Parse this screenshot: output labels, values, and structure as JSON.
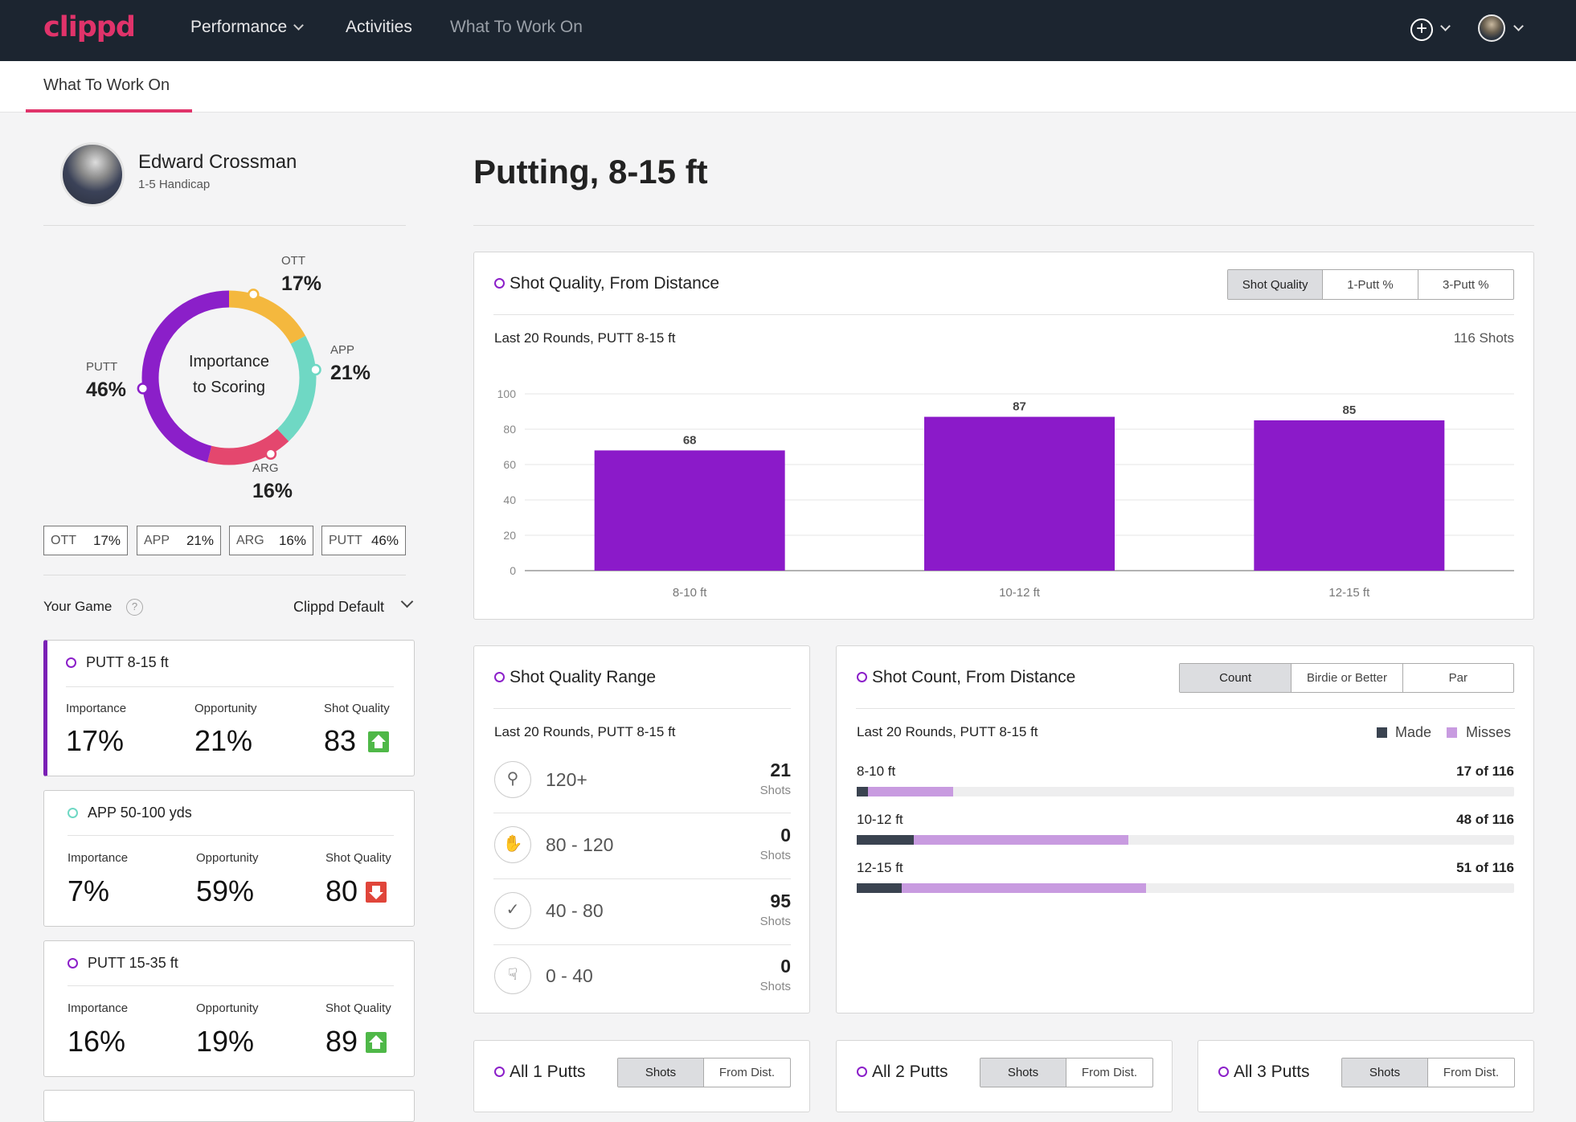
{
  "nav": {
    "logo": "clippd",
    "items": [
      {
        "label": "Performance"
      },
      {
        "label": "Activities"
      },
      {
        "label": "What To Work On"
      }
    ]
  },
  "subnav": {
    "tab": "What To Work On"
  },
  "profile": {
    "name": "Edward Crossman",
    "handicap": "1-5 Handicap"
  },
  "importance": {
    "center_line1": "Importance",
    "center_line2": "to Scoring",
    "segments": [
      {
        "key": "OTT",
        "value": 17,
        "label": "17%",
        "color": "#f4b83e"
      },
      {
        "key": "APP",
        "value": 21,
        "label": "21%",
        "color": "#6fd8c4"
      },
      {
        "key": "ARG",
        "value": 16,
        "label": "16%",
        "color": "#e4476e"
      },
      {
        "key": "PUTT",
        "value": 46,
        "label": "46%",
        "color": "#8b1fc9"
      }
    ]
  },
  "your_game": {
    "label": "Your Game",
    "help": "?",
    "selector": "Clippd Default"
  },
  "cards": [
    {
      "title": "PUTT 8-15 ft",
      "importance_label": "Importance",
      "importance": "17%",
      "opportunity_label": "Opportunity",
      "opportunity": "21%",
      "quality_label": "Shot Quality",
      "quality": "83",
      "trend": "up"
    },
    {
      "title": "APP 50-100 yds",
      "importance_label": "Importance",
      "importance": "7%",
      "opportunity_label": "Opportunity",
      "opportunity": "59%",
      "quality_label": "Shot Quality",
      "quality": "80",
      "trend": "down"
    },
    {
      "title": "PUTT 15-35 ft",
      "importance_label": "Importance",
      "importance": "16%",
      "opportunity_label": "Opportunity",
      "opportunity": "19%",
      "quality_label": "Shot Quality",
      "quality": "89",
      "trend": "up"
    }
  ],
  "main": {
    "title": "Putting, 8-15 ft"
  },
  "shot_quality_panel": {
    "title": "Shot Quality, From Distance",
    "tabs": [
      "Shot Quality",
      "1-Putt %",
      "3-Putt %"
    ],
    "subtitle": "Last 20 Rounds, PUTT 8-15 ft",
    "shots": "116 Shots"
  },
  "chart_data": {
    "type": "bar",
    "title": "Shot Quality, From Distance",
    "categories": [
      "8-10 ft",
      "10-12 ft",
      "12-15 ft"
    ],
    "values": [
      68,
      87,
      85
    ],
    "ylim": [
      0,
      100
    ],
    "yticks": [
      0,
      20,
      40,
      60,
      80,
      100
    ],
    "grid": true,
    "bar_color": "#8b1ac9"
  },
  "range_panel": {
    "title": "Shot Quality Range",
    "subtitle": "Last 20 Rounds, PUTT 8-15 ft",
    "unit": "Shots",
    "rows": [
      {
        "label": "120+",
        "value": "21",
        "icon": "medal-icon"
      },
      {
        "label": "80 - 120",
        "value": "0",
        "icon": "clap-icon"
      },
      {
        "label": "40 - 80",
        "value": "95",
        "icon": "check-icon"
      },
      {
        "label": "0 - 40",
        "value": "0",
        "icon": "thumbs-down-icon"
      }
    ]
  },
  "count_panel": {
    "title": "Shot Count, From Distance",
    "tabs": [
      "Count",
      "Birdie or Better",
      "Par"
    ],
    "subtitle": "Last 20 Rounds, PUTT 8-15 ft",
    "legend_made": "Made",
    "legend_misses": "Misses",
    "made_color": "#3a4350",
    "miss_color": "#c89be0",
    "rows": [
      {
        "label": "8-10 ft",
        "text": "17 of 116",
        "count": 17,
        "total": 116,
        "made": 2
      },
      {
        "label": "10-12 ft",
        "text": "48 of 116",
        "count": 48,
        "total": 116,
        "made": 10
      },
      {
        "label": "12-15 ft",
        "text": "51 of 116",
        "count": 51,
        "total": 116,
        "made": 8
      }
    ]
  },
  "putts_panels": [
    {
      "title": "All 1 Putts",
      "tabs": [
        "Shots",
        "From Dist."
      ]
    },
    {
      "title": "All 2 Putts",
      "tabs": [
        "Shots",
        "From Dist."
      ]
    },
    {
      "title": "All 3 Putts",
      "tabs": [
        "Shots",
        "From Dist."
      ]
    }
  ]
}
